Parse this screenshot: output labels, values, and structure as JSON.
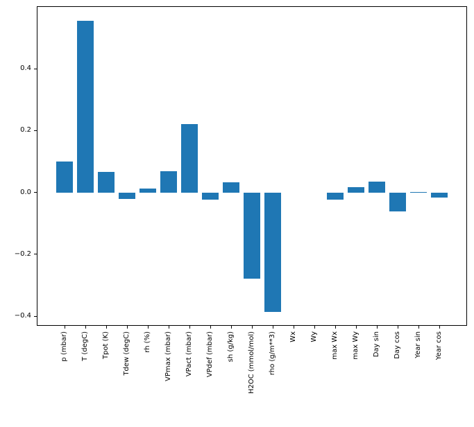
{
  "chart_data": {
    "type": "bar",
    "title": "",
    "xlabel": "",
    "ylabel": "",
    "categories": [
      "p (mbar)",
      "T (degC)",
      "Tpot (K)",
      "Tdew (degC)",
      "rh (%)",
      "VPmax (mbar)",
      "VPact (mbar)",
      "VPdef (mbar)",
      "sh (g/kg)",
      "H2OC (mmol/mol)",
      "rho (g/m**3)",
      "Wx",
      "Wy",
      "max Wx",
      "max Wy",
      "Day sin",
      "Day cos",
      "Year sin",
      "Year cos"
    ],
    "values": [
      0.1,
      0.556,
      0.067,
      -0.021,
      0.013,
      0.07,
      0.222,
      -0.023,
      0.033,
      -0.278,
      -0.385,
      0.0,
      0.0,
      -0.023,
      0.017,
      0.035,
      -0.06,
      0.002,
      -0.016
    ],
    "yticks": [
      {
        "v": 0.4,
        "label": "0.4"
      },
      {
        "v": 0.2,
        "label": "0.2"
      },
      {
        "v": 0.0,
        "label": "0.0"
      },
      {
        "v": -0.2,
        "label": "−0.2"
      },
      {
        "v": -0.4,
        "label": "−0.4"
      }
    ],
    "ylim": [
      -0.431,
      0.602
    ],
    "xlim": [
      -1.34,
      19.34
    ],
    "bar_rel_width": 0.8,
    "grid": false,
    "legend_position": "none",
    "bar_color": "#1f77b4",
    "axis_color": "#000000",
    "background_color": "#ffffff"
  }
}
